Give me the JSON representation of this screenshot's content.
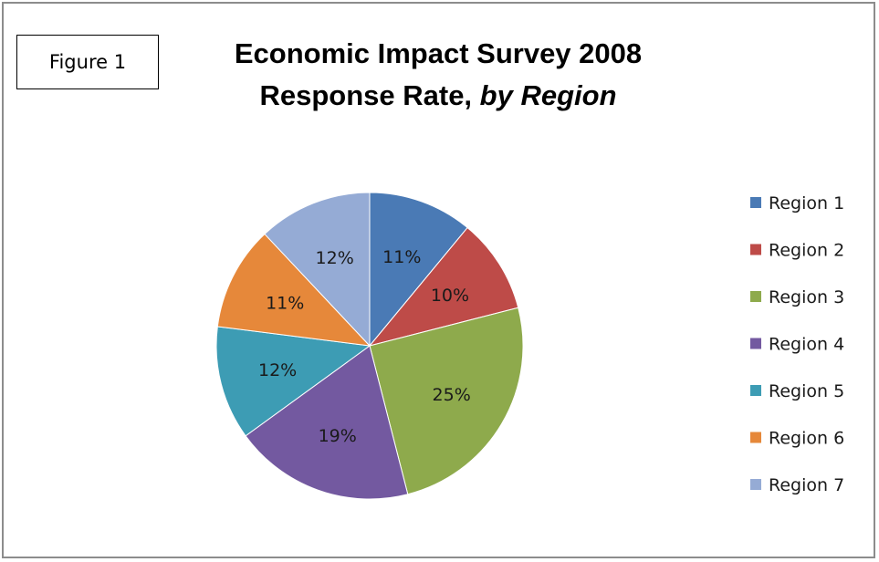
{
  "figure_label": "Figure 1",
  "chart_data": {
    "type": "pie",
    "title_line1": "Economic Impact Survey 2008",
    "title_line2_main": "Response Rate, ",
    "title_line2_italic": "by Region",
    "categories": [
      "Region 1",
      "Region 2",
      "Region 3",
      "Region 4",
      "Region 5",
      "Region 6",
      "Region 7"
    ],
    "values": [
      11,
      10,
      25,
      19,
      12,
      11,
      12
    ],
    "labels": [
      "11%",
      "10%",
      "25%",
      "19%",
      "12%",
      "11%",
      "12%"
    ],
    "colors": [
      "#4a7ab5",
      "#be4b48",
      "#8eaa4c",
      "#7359a0",
      "#3d9cb4",
      "#e6883a",
      "#95abd5"
    ],
    "legend_position": "right"
  }
}
